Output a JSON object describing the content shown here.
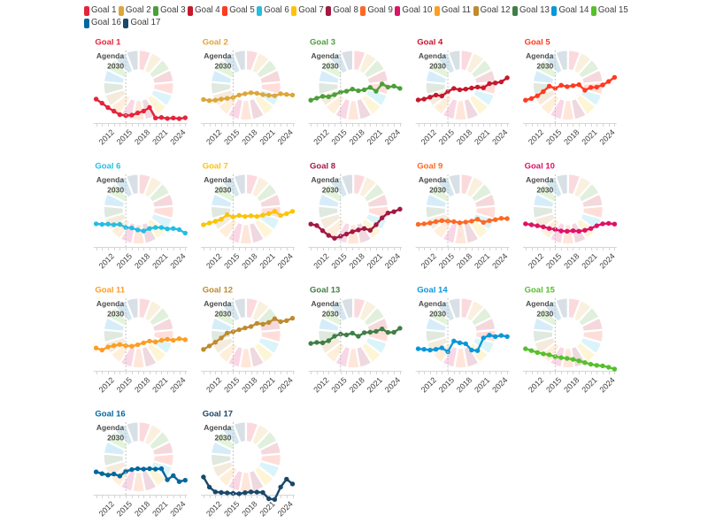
{
  "page": {
    "background": "#ffffff",
    "description": "SDG dashboard grid of 17 goal trend mini-charts"
  },
  "legend": {
    "items": [
      {
        "label": "Goal 1",
        "color": "#E5243B"
      },
      {
        "label": "Goal 2",
        "color": "#DDA63A"
      },
      {
        "label": "Goal 3",
        "color": "#4C9F38"
      },
      {
        "label": "Goal 4",
        "color": "#C5192D"
      },
      {
        "label": "Goal 5",
        "color": "#FF3A21"
      },
      {
        "label": "Goal 6",
        "color": "#26BDE2"
      },
      {
        "label": "Goal 7",
        "color": "#FCC30B"
      },
      {
        "label": "Goal 8",
        "color": "#A21942"
      },
      {
        "label": "Goal 9",
        "color": "#FD6925"
      },
      {
        "label": "Goal 10",
        "color": "#DD1367"
      },
      {
        "label": "Goal 11",
        "color": "#FD9D24"
      },
      {
        "label": "Goal 12",
        "color": "#BF8B2E"
      },
      {
        "label": "Goal 13",
        "color": "#3F7E44"
      },
      {
        "label": "Goal 14",
        "color": "#0A97D9"
      },
      {
        "label": "Goal 15",
        "color": "#56C02B"
      },
      {
        "label": "Goal 16",
        "color": "#00689D"
      },
      {
        "label": "Goal 17",
        "color": "#19486A"
      }
    ]
  },
  "wheel": {
    "segment_colors": [
      "#E5243B",
      "#DDA63A",
      "#4C9F38",
      "#C5192D",
      "#FF3A21",
      "#26BDE2",
      "#FCC30B",
      "#A21942",
      "#FD6925",
      "#DD1367",
      "#FD9D24",
      "#BF8B2E",
      "#3F7E44",
      "#0A97D9",
      "#56C02B",
      "#00689D",
      "#19486A"
    ],
    "opacity": 0.17,
    "annotation_line1": "Agenda",
    "annotation_line2": "2030",
    "annotation_color": "#4d4d4d"
  },
  "axis": {
    "tick_labels": [
      "2012",
      "2015",
      "2018",
      "2021",
      "2024"
    ],
    "label_tick_indices": [
      2,
      5,
      8,
      11,
      14
    ],
    "dashed_line_index": 5,
    "line_color": "#d6d6d6",
    "dash_color": "#c6c6c6",
    "label_color": "#3c3c3c"
  },
  "chart_data": [
    {
      "type": "line",
      "title": "Goal 1",
      "color": "#E5243B",
      "x": [
        2010,
        2011,
        2012,
        2013,
        2014,
        2015,
        2016,
        2017,
        2018,
        2019,
        2020,
        2021,
        2022,
        2023,
        2024,
        2025
      ],
      "values": [
        32.9,
        27.3,
        21.2,
        16.3,
        11.5,
        10.2,
        10.9,
        13.9,
        16.5,
        21.3,
        7.0,
        7.7,
        6.2,
        7.0,
        6.0,
        7.2
      ]
    },
    {
      "type": "line",
      "title": "Goal 2",
      "color": "#DDA63A",
      "x": [
        2010,
        2011,
        2012,
        2013,
        2014,
        2015,
        2016,
        2017,
        2018,
        2019,
        2020,
        2021,
        2022,
        2023,
        2024,
        2025
      ],
      "values": [
        32.4,
        30.9,
        31.5,
        32.9,
        33.9,
        35.2,
        38.5,
        40.2,
        41.7,
        41.0,
        39.0,
        38.2,
        37.6,
        40.2,
        39.4,
        38.5
      ]
    },
    {
      "type": "line",
      "title": "Goal 3",
      "color": "#4C9F38",
      "x": [
        2010,
        2011,
        2012,
        2013,
        2014,
        2015,
        2016,
        2017,
        2018,
        2019,
        2020,
        2021,
        2022,
        2023,
        2024,
        2025
      ],
      "values": [
        31.5,
        34.3,
        36.8,
        36.2,
        39.0,
        42.4,
        43.8,
        46.7,
        44.4,
        45.7,
        49.0,
        43.8,
        53.9,
        49.5,
        50.9,
        47.7
      ]
    },
    {
      "type": "line",
      "title": "Goal 4",
      "color": "#C5192D",
      "x": [
        2010,
        2011,
        2012,
        2013,
        2014,
        2015,
        2016,
        2017,
        2018,
        2019,
        2020,
        2021,
        2022,
        2023,
        2024,
        2025
      ],
      "values": [
        31.8,
        32.9,
        35.6,
        38.5,
        37.2,
        43.3,
        47.7,
        45.7,
        46.7,
        48.2,
        49.5,
        48.5,
        54.3,
        55.2,
        56.6,
        62.3
      ]
    },
    {
      "type": "line",
      "title": "Goal 5",
      "color": "#FF3A21",
      "x": [
        2010,
        2011,
        2012,
        2013,
        2014,
        2015,
        2016,
        2017,
        2018,
        2019,
        2020,
        2021,
        2022,
        2023,
        2024,
        2025
      ],
      "values": [
        31.5,
        33.8,
        37.6,
        43.3,
        50.9,
        47.7,
        52.1,
        50.1,
        51.5,
        52.8,
        45.1,
        49.0,
        49.5,
        52.4,
        57.2,
        62.9
      ]
    },
    {
      "type": "line",
      "title": "Goal 6",
      "color": "#26BDE2",
      "x": [
        2010,
        2011,
        2012,
        2013,
        2014,
        2015,
        2016,
        2017,
        2018,
        2019,
        2020,
        2021,
        2022,
        2023,
        2024,
        2025
      ],
      "values": [
        31.8,
        31.1,
        31.5,
        30.5,
        31.1,
        26.7,
        26.1,
        23.4,
        22.0,
        25.4,
        26.7,
        26.7,
        24.8,
        25.4,
        23.8,
        19.0
      ]
    },
    {
      "type": "line",
      "title": "Goal 7",
      "color": "#FCC30B",
      "x": [
        2010,
        2011,
        2012,
        2013,
        2014,
        2015,
        2016,
        2017,
        2018,
        2019,
        2020,
        2021,
        2022,
        2023,
        2024,
        2025
      ],
      "values": [
        30.5,
        32.9,
        35.2,
        38.2,
        44.4,
        41.3,
        43.3,
        42.0,
        42.9,
        42.0,
        43.8,
        45.7,
        49.0,
        43.3,
        45.7,
        49.0
      ]
    },
    {
      "type": "line",
      "title": "Goal 8",
      "color": "#A21942",
      "x": [
        2010,
        2011,
        2012,
        2013,
        2014,
        2015,
        2016,
        2017,
        2018,
        2019,
        2020,
        2021,
        2022,
        2023,
        2024,
        2025
      ],
      "values": [
        31.5,
        29.5,
        22.3,
        15.9,
        12.0,
        14.6,
        17.7,
        21.0,
        23.4,
        25.4,
        22.9,
        30.5,
        40.0,
        46.7,
        48.5,
        52.1
      ]
    },
    {
      "type": "line",
      "title": "Goal 9",
      "color": "#FD6925",
      "x": [
        2010,
        2011,
        2012,
        2013,
        2014,
        2015,
        2016,
        2017,
        2018,
        2019,
        2020,
        2021,
        2022,
        2023,
        2024,
        2025
      ],
      "values": [
        31.1,
        31.8,
        32.9,
        34.9,
        36.2,
        35.6,
        34.9,
        33.3,
        34.3,
        35.6,
        38.2,
        33.8,
        36.2,
        37.6,
        39.4,
        39.0
      ]
    },
    {
      "type": "line",
      "title": "Goal 10",
      "color": "#DD1367",
      "x": [
        2010,
        2011,
        2012,
        2013,
        2014,
        2015,
        2016,
        2017,
        2018,
        2019,
        2020,
        2021,
        2022,
        2023,
        2024,
        2025
      ],
      "values": [
        31.8,
        30.5,
        29.1,
        27.7,
        25.4,
        24.1,
        22.0,
        21.6,
        22.3,
        21.6,
        22.9,
        25.4,
        29.1,
        31.8,
        32.4,
        31.5
      ]
    },
    {
      "type": "line",
      "title": "Goal 11",
      "color": "#FD9D24",
      "x": [
        2010,
        2011,
        2012,
        2013,
        2014,
        2015,
        2016,
        2017,
        2018,
        2019,
        2020,
        2021,
        2022,
        2023,
        2024,
        2025
      ],
      "values": [
        31.5,
        28.5,
        32.8,
        34.6,
        36.2,
        34.6,
        33.9,
        35.9,
        38.5,
        41.0,
        39.6,
        42.0,
        43.4,
        42.0,
        44.3,
        42.9
      ]
    },
    {
      "type": "line",
      "title": "Goal 12",
      "color": "#BF8B2E",
      "x": [
        2010,
        2011,
        2012,
        2013,
        2014,
        2015,
        2016,
        2017,
        2018,
        2019,
        2020,
        2021,
        2022,
        2023,
        2024,
        2025
      ],
      "values": [
        29.5,
        34.3,
        39.4,
        45.1,
        52.1,
        53.9,
        56.6,
        59.0,
        61.0,
        65.4,
        64.3,
        66.7,
        71.8,
        67.7,
        69.1,
        72.4
      ]
    },
    {
      "type": "line",
      "title": "Goal 13",
      "color": "#3F7E44",
      "x": [
        2010,
        2011,
        2012,
        2013,
        2014,
        2015,
        2016,
        2017,
        2018,
        2019,
        2020,
        2021,
        2022,
        2023,
        2024,
        2025
      ],
      "values": [
        37.7,
        39.1,
        38.7,
        41.5,
        47.6,
        50.6,
        49.5,
        52.0,
        47.6,
        52.6,
        53.3,
        54.4,
        57.7,
        52.9,
        53.0,
        58.7
      ]
    },
    {
      "type": "line",
      "title": "Goal 14",
      "color": "#0A97D9",
      "x": [
        2010,
        2011,
        2012,
        2013,
        2014,
        2015,
        2016,
        2017,
        2018,
        2019,
        2020,
        2021,
        2022,
        2023,
        2024,
        2025
      ],
      "values": [
        30.4,
        29.6,
        28.5,
        29.6,
        31.6,
        26.2,
        41.1,
        38.7,
        37.3,
        28.5,
        27.8,
        45.2,
        49.1,
        47.2,
        48.7,
        47.2
      ]
    },
    {
      "type": "line",
      "title": "Goal 15",
      "color": "#56C02B",
      "x": [
        2010,
        2011,
        2012,
        2013,
        2014,
        2015,
        2016,
        2017,
        2018,
        2019,
        2020,
        2021,
        2022,
        2023,
        2024,
        2025
      ],
      "values": [
        30.4,
        27.8,
        25.2,
        23.4,
        22.1,
        19.5,
        18.2,
        17.1,
        15.7,
        13.8,
        11.3,
        9.0,
        7.6,
        6.8,
        4.9,
        2.4
      ]
    },
    {
      "type": "line",
      "title": "Goal 16",
      "color": "#00689D",
      "x": [
        2010,
        2011,
        2012,
        2013,
        2014,
        2015,
        2016,
        2017,
        2018,
        2019,
        2020,
        2021,
        2022,
        2023,
        2024,
        2025
      ],
      "values": [
        31.5,
        29.0,
        27.1,
        28.5,
        25.7,
        32.1,
        34.6,
        35.9,
        35.2,
        35.9,
        35.2,
        35.9,
        20.6,
        26.3,
        18.0,
        20.0
      ]
    },
    {
      "type": "line",
      "title": "Goal 17",
      "color": "#19486A",
      "x": [
        2010,
        2011,
        2012,
        2013,
        2014,
        2015,
        2016,
        2017,
        2018,
        2019,
        2020,
        2021,
        2022,
        2023,
        2024,
        2025
      ],
      "values": [
        24.4,
        10.5,
        3.9,
        3.0,
        2.4,
        2.0,
        1.3,
        2.8,
        3.9,
        3.5,
        3.0,
        -5.5,
        -6.6,
        10.5,
        21.5,
        14.9
      ]
    }
  ],
  "notes": {
    "values_scale": "values are percent of mini-chart plot height above the x-axis, estimated from pixels (no y-axis labels are shown)"
  }
}
